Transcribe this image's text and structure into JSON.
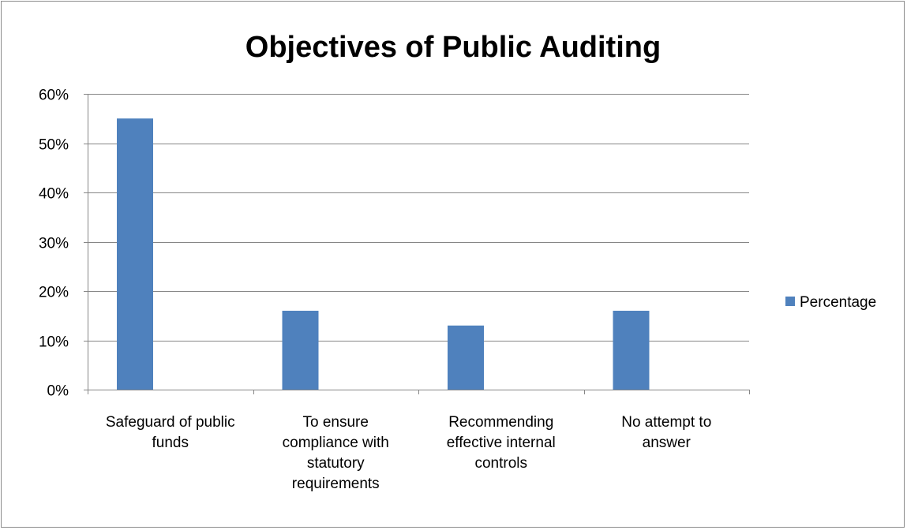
{
  "chart_data": {
    "type": "bar",
    "title": "Objectives of Public Auditing",
    "xlabel": "",
    "ylabel": "",
    "categories": [
      [
        "Safeguard of public",
        "funds"
      ],
      [
        "To ensure",
        "compliance with",
        "statutory",
        "requirements"
      ],
      [
        "Recommending",
        "effective internal",
        "controls"
      ],
      [
        "No attempt to",
        "answer"
      ]
    ],
    "series": [
      {
        "name": "Percentage",
        "values": [
          0.55,
          0.16,
          0.13,
          0.16
        ],
        "color": "#4f81bd"
      }
    ],
    "ylim": [
      0,
      0.6
    ],
    "yticks": [
      0,
      0.1,
      0.2,
      0.3,
      0.4,
      0.5,
      0.6
    ],
    "ytick_labels": [
      "0%",
      "10%",
      "20%",
      "30%",
      "40%",
      "50%",
      "60%"
    ],
    "grid": "horizontal",
    "legend_position": "right",
    "colors": {
      "bar": "#4f81bd",
      "grid": "#868686",
      "axis": "#868686"
    }
  }
}
